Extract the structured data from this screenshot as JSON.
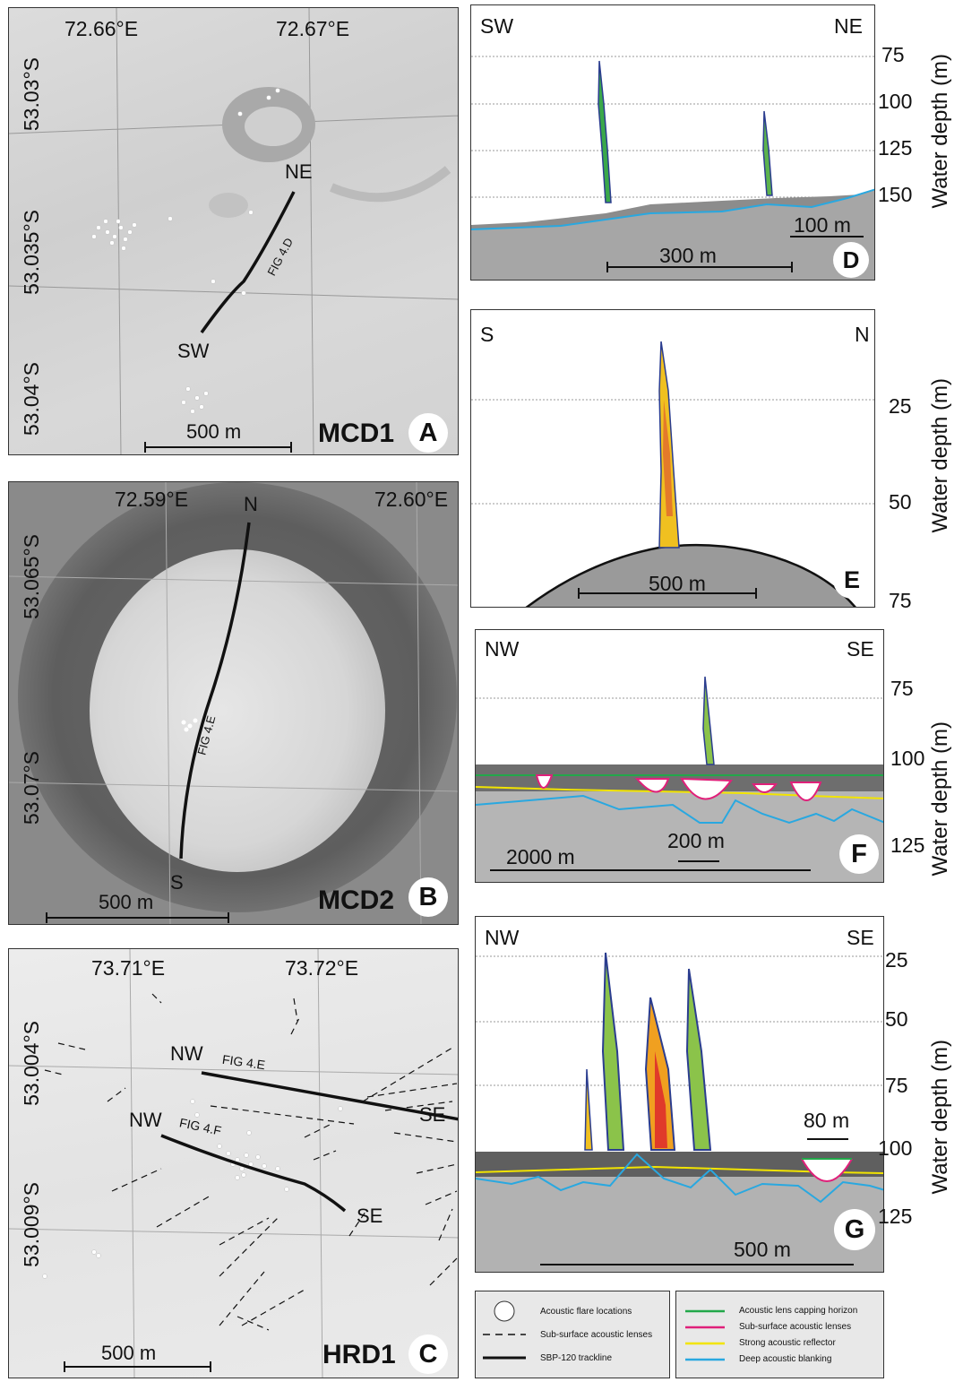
{
  "panelA": {
    "lon_labels": [
      "72.66°E",
      "72.67°E"
    ],
    "lat_labels": [
      "53.03°S",
      "53.035°S",
      "53.04°S"
    ],
    "end_ne": "NE",
    "end_sw": "SW",
    "track": "FIG 4.D",
    "scale": "500 m",
    "site": "MCD1",
    "letter": "A"
  },
  "panelB": {
    "lon_labels": [
      "72.59°E",
      "72.60°E"
    ],
    "lat_labels": [
      "53.065°S",
      "53.07°S"
    ],
    "end_n": "N",
    "end_s": "S",
    "track": "FIG 4.E",
    "scale": "500 m",
    "site": "MCD2",
    "letter": "B"
  },
  "panelC": {
    "lon_labels": [
      "73.71°E",
      "73.72°E"
    ],
    "lat_labels": [
      "53.004°S",
      "53.009°S"
    ],
    "nw1": "NW",
    "track1": "FIG 4.E",
    "se1": "SE",
    "nw2": "NW",
    "track2": "FIG 4.F",
    "se2": "SE",
    "scale": "500 m",
    "site": "HRD1",
    "letter": "C"
  },
  "panelD": {
    "left": "SW",
    "right": "NE",
    "ticks": [
      "75",
      "100",
      "125",
      "150"
    ],
    "ylabel": "Water depth (m)",
    "scale_small": "100 m",
    "scale_big": "300 m",
    "letter": "D"
  },
  "panelE": {
    "left": "S",
    "right": "N",
    "ticks": [
      "25",
      "50",
      "75"
    ],
    "ylabel": "Water depth (m)",
    "scale": "500 m",
    "letter": "E"
  },
  "panelF": {
    "left": "NW",
    "right": "SE",
    "ticks": [
      "75",
      "100",
      "125"
    ],
    "ylabel": "Water depth (m)",
    "scale_small": "200 m",
    "scale_big": "2000 m",
    "letter": "F"
  },
  "panelG": {
    "left": "NW",
    "right": "SE",
    "ticks": [
      "25",
      "50",
      "75",
      "100",
      "125"
    ],
    "ylabel": "Water depth (m)",
    "scale_small": "80 m",
    "scale_big": "500 m",
    "letter": "G"
  },
  "legend": {
    "left_items": [
      "Acoustic flare locations",
      "Sub-surface acoustic lenses",
      "SBP-120 trackline"
    ],
    "right_items": [
      {
        "label": "Acoustic lens capping horizon",
        "color": "#22a84a"
      },
      {
        "label": "Sub-surface acoustic lenses",
        "color": "#e0207a"
      },
      {
        "label": "Strong acoustic reflector",
        "color": "#f2e400"
      },
      {
        "label": "Deep acoustic blanking",
        "color": "#29a8e0"
      }
    ]
  }
}
